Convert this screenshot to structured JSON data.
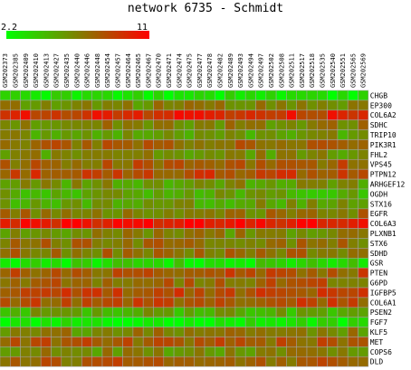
{
  "chart_data": {
    "type": "heatmap",
    "title": "network 6735 - Schmidt",
    "scale": {
      "min": 2.2,
      "max": 11,
      "min_label": "2.2",
      "max_label": "11",
      "low_color": "#00ff00",
      "high_color": "#ff0000"
    },
    "columns": [
      "GSM202373",
      "GSM202385",
      "GSM202409",
      "GSM202410",
      "GSM202413",
      "GSM202427",
      "GSM202435",
      "GSM202440",
      "GSM202446",
      "GSM202448",
      "GSM202454",
      "GSM202457",
      "GSM202464",
      "GSM202465",
      "GSM202467",
      "GSM202470",
      "GSM202471",
      "GSM202474",
      "GSM202475",
      "GSM202477",
      "GSM202478",
      "GSM202482",
      "GSM202489",
      "GSM202493",
      "GSM202494",
      "GSM202497",
      "GSM202502",
      "GSM202508",
      "GSM202511",
      "GSM202517",
      "GSM202518",
      "GSM202535",
      "GSM202540",
      "GSM202551",
      "GSM202565",
      "GSM202569"
    ],
    "rows": [
      "CHGB",
      "EP300",
      "COL6A2",
      "SDHC",
      "TRIP10",
      "PIK3R1",
      "FHL2",
      "VPS45",
      "PTPN12",
      "ARHGEF12",
      "OGDH",
      "STX16",
      "EGFR",
      "COL6A3",
      "PLXNB1",
      "STX6",
      "SDHD",
      "GSR",
      "PTEN",
      "G6PD",
      "IGFBP5",
      "COL6A1",
      "PSEN2",
      "FGF7",
      "KLF5",
      "MET",
      "COPS6",
      "DLD"
    ],
    "row_levels": [
      3.0,
      6.3,
      9.5,
      6.6,
      5.8,
      7.4,
      6.1,
      7.8,
      8.5,
      5.9,
      5.2,
      5.6,
      7.0,
      10.4,
      6.4,
      7.1,
      7.1,
      3.4,
      8.0,
      7.6,
      8.3,
      8.2,
      5.2,
      2.8,
      6.5,
      7.7,
      6.3,
      7.7
    ]
  }
}
